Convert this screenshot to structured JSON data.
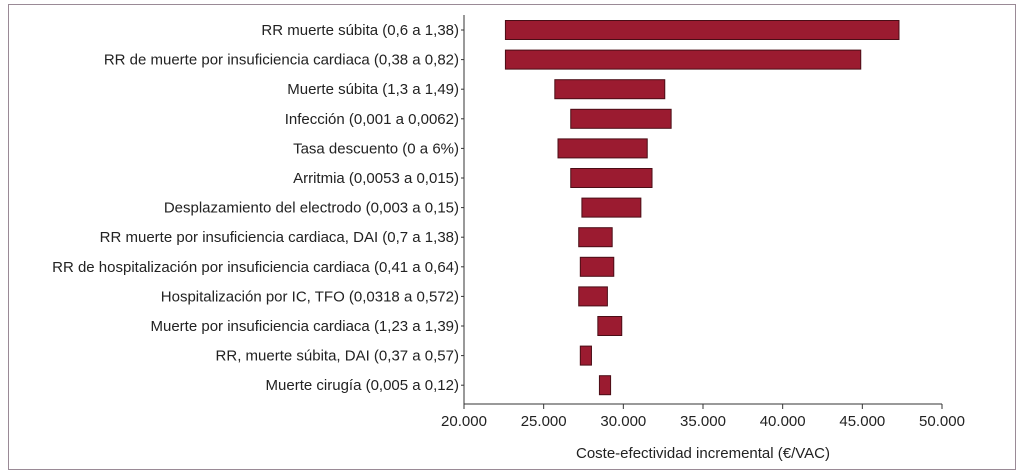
{
  "chart_data": {
    "type": "bar",
    "orientation": "horizontal-tornado",
    "xlabel": "Coste-efectividad incremental (€/VAC)",
    "xlim": [
      20000,
      50000
    ],
    "xticks": [
      20000,
      25000,
      30000,
      35000,
      40000,
      45000,
      50000
    ],
    "xtick_labels": [
      "20.000",
      "25.000",
      "30.000",
      "35.000",
      "40.000",
      "45.000",
      "50.000"
    ],
    "bar_color": "#9b1b30",
    "bar_edge_color": "#4a0d16",
    "categories": [
      "RR muerte súbita (0,6 a 1,38)",
      "RR de muerte por insuficiencia cardiaca (0,38 a 0,82)",
      "Muerte súbita (1,3 a 1,49)",
      "Infección (0,001 a 0,0062)",
      "Tasa descuento (0 a 6%)",
      "Arritmia (0,0053 a 0,015)",
      "Desplazamiento del electrodo (0,003 a 0,15)",
      "RR muerte por insuficiencia cardiaca, DAI (0,7 a 1,38)",
      "RR de hospitalización por insuficiencia cardiaca (0,41 a 0,64)",
      "Hospitalización por IC, TFO (0,0318 a 0,572)",
      "Muerte por insuficiencia cardiaca (1,23 a 1,39)",
      "RR, muerte súbita, DAI (0,37 a 0,57)",
      "Muerte cirugía (0,005 a 0,12)"
    ],
    "ranges": [
      [
        22600,
        47300
      ],
      [
        22600,
        44900
      ],
      [
        25700,
        32600
      ],
      [
        26700,
        33000
      ],
      [
        25900,
        31500
      ],
      [
        26700,
        31800
      ],
      [
        27400,
        31100
      ],
      [
        27200,
        29300
      ],
      [
        27300,
        29400
      ],
      [
        27200,
        29000
      ],
      [
        28400,
        29900
      ],
      [
        27300,
        28000
      ],
      [
        28500,
        29200
      ]
    ]
  }
}
